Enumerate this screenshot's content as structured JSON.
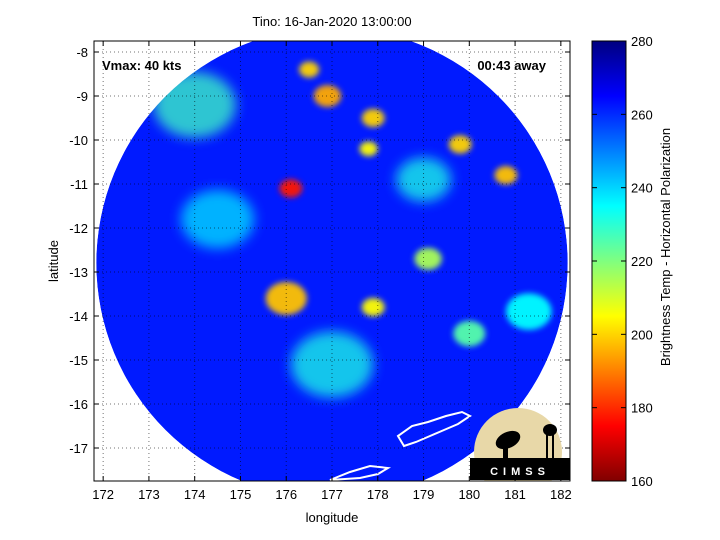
{
  "chart_data": {
    "type": "heatmap",
    "title": "Tino: 16-Jan-2020 13:00:00",
    "xlabel": "longitude",
    "ylabel": "latitude",
    "xlim": [
      171.8,
      182.2
    ],
    "ylim": [
      -17.75,
      -7.75
    ],
    "x_ticks": [
      172,
      173,
      174,
      175,
      176,
      177,
      178,
      179,
      180,
      181,
      182
    ],
    "x_tick_labels": [
      "172",
      "173",
      "174",
      "175",
      "176",
      "177",
      "178",
      "179",
      "180",
      "181",
      "182"
    ],
    "y_ticks": [
      -8,
      -9,
      -10,
      -11,
      -12,
      -13,
      -14,
      -15,
      -16,
      -17
    ],
    "y_tick_labels": [
      "-8",
      "-9",
      "-10",
      "-11",
      "-12",
      "-13",
      "-14",
      "-15",
      "-16",
      "-17"
    ],
    "grid": true,
    "annotations": {
      "vmax": "Vmax: 40 kts",
      "away": "00:43 away"
    },
    "colorbar": {
      "label": "Brightness Temp - Horizontal Polarization",
      "range": [
        160,
        280
      ],
      "ticks": [
        160,
        180,
        200,
        220,
        240,
        260,
        280
      ],
      "tick_labels": [
        "160",
        "180",
        "200",
        "220",
        "240",
        "260",
        "280"
      ],
      "colormap": "jet"
    },
    "swath": {
      "center_lon": 177.0,
      "center_lat": -12.8,
      "radius_deg": 5.15
    },
    "background_temp": 262,
    "features": [
      {
        "lon": 176.1,
        "lat": -11.1,
        "temp": 178,
        "size": 0.25
      },
      {
        "lon": 176.0,
        "lat": -13.6,
        "temp": 198,
        "size": 0.45
      },
      {
        "lon": 176.9,
        "lat": -9.0,
        "temp": 195,
        "size": 0.3
      },
      {
        "lon": 176.5,
        "lat": -8.4,
        "temp": 200,
        "size": 0.22
      },
      {
        "lon": 177.9,
        "lat": -9.5,
        "temp": 200,
        "size": 0.25
      },
      {
        "lon": 177.8,
        "lat": -10.2,
        "temp": 205,
        "size": 0.2
      },
      {
        "lon": 179.8,
        "lat": -10.1,
        "temp": 200,
        "size": 0.25
      },
      {
        "lon": 180.8,
        "lat": -10.8,
        "temp": 198,
        "size": 0.25
      },
      {
        "lon": 177.9,
        "lat": -13.8,
        "temp": 205,
        "size": 0.25
      },
      {
        "lon": 179.1,
        "lat": -12.7,
        "temp": 215,
        "size": 0.3
      },
      {
        "lon": 180.0,
        "lat": -14.4,
        "temp": 225,
        "size": 0.35
      },
      {
        "lon": 174.0,
        "lat": -9.2,
        "temp": 228,
        "size": 0.9
      },
      {
        "lon": 177.0,
        "lat": -15.1,
        "temp": 232,
        "size": 0.9
      },
      {
        "lon": 174.5,
        "lat": -11.8,
        "temp": 238,
        "size": 0.8
      },
      {
        "lon": 179.0,
        "lat": -10.9,
        "temp": 232,
        "size": 0.6
      },
      {
        "lon": 181.3,
        "lat": -13.9,
        "temp": 235,
        "size": 0.5
      }
    ]
  },
  "logo": {
    "text": "CIMSS"
  }
}
